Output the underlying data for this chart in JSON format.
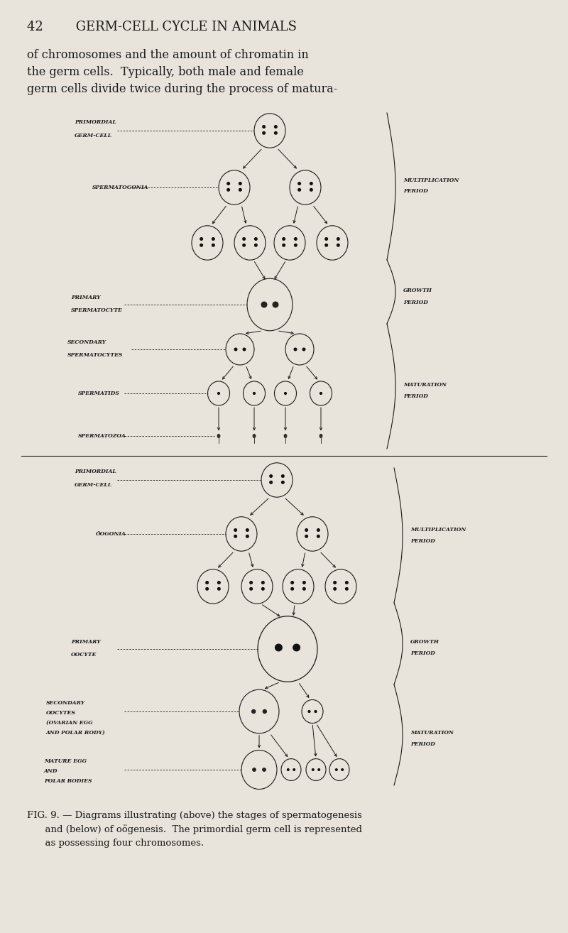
{
  "bg_color": "#e8e4dc",
  "page_header": "42        GERM-CELL CYCLE IN ANIMALS",
  "body_text": "of chromosomes and the amount of chromatin in\nthe germ cells.  Typically, both male and female\ngerm cells divide twice during the process of matura-",
  "caption": "FIG. 9. — Diagrams illustrating (above) the stages of spermatogenesis\n      and (below) of oögenesis.  The primordial germ cell is represented\n      as possessing four chromosomes.",
  "line_color": "#1a1a1a",
  "text_color": "#1a1a1a",
  "label_fontsize": 5.5,
  "period_fontsize": 5.5,
  "header_fontsize": 13,
  "body_fontsize": 11.5,
  "caption_fontsize": 9.5
}
